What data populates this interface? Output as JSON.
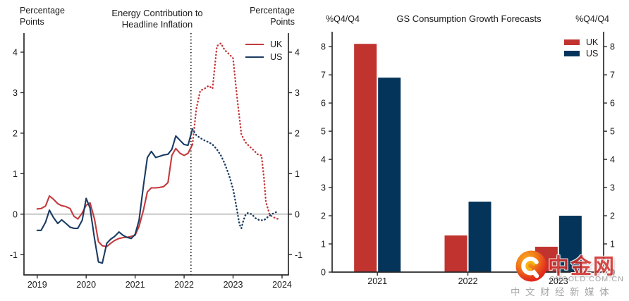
{
  "left_chart": {
    "title": [
      "Energy Contribution to",
      "Headline Inflation"
    ],
    "unit_left": [
      "Percentage",
      "Points"
    ],
    "unit_right": [
      "Percentage",
      "Points"
    ],
    "legend": [
      {
        "label": "UK",
        "color": "#c4393c"
      },
      {
        "label": "US",
        "color": "#1b3c63"
      }
    ]
  },
  "right_chart": {
    "title": "GS Consumption Growth Forecasts",
    "unit_left": "%Q4/Q4",
    "unit_right": "%Q4/Q4",
    "legend": [
      {
        "label": "UK",
        "color": "#c0332f"
      },
      {
        "label": "US",
        "color": "#043459"
      }
    ]
  },
  "watermark": {
    "brand": "中金网",
    "domain": "CNGOLD.COM.CN",
    "tagline": "中文财经新媒体",
    "logo_icon": "cngold-swirl-icon",
    "brand_color": "#cf2f2c"
  },
  "chart_data": [
    {
      "type": "line",
      "title": "Energy Contribution to Headline Inflation",
      "ylabel": "Percentage Points",
      "xlim": [
        2018.73,
        2024.13
      ],
      "ylim": [
        -1.5,
        4.47
      ],
      "yticks": [
        -1,
        0,
        1,
        2,
        3,
        4
      ],
      "xticks": [
        2019,
        2020,
        2021,
        2022,
        2023,
        2024
      ],
      "zero_line": true,
      "forecast_divider_x": 2022.14,
      "legend_position": "top-right-inside",
      "series": [
        {
          "name": "UK",
          "color": "#c4393c",
          "style": "solid",
          "points": [
            [
              2019.0,
              0.13
            ],
            [
              2019.08,
              0.14
            ],
            [
              2019.17,
              0.2
            ],
            [
              2019.25,
              0.45
            ],
            [
              2019.33,
              0.37
            ],
            [
              2019.42,
              0.26
            ],
            [
              2019.5,
              0.21
            ],
            [
              2019.58,
              0.19
            ],
            [
              2019.67,
              0.14
            ],
            [
              2019.75,
              -0.05
            ],
            [
              2019.83,
              -0.12
            ],
            [
              2019.92,
              0.03
            ],
            [
              2020.0,
              0.22
            ],
            [
              2020.08,
              0.28
            ],
            [
              2020.17,
              -0.12
            ],
            [
              2020.25,
              -0.68
            ],
            [
              2020.33,
              -0.78
            ],
            [
              2020.42,
              -0.8
            ],
            [
              2020.5,
              -0.72
            ],
            [
              2020.58,
              -0.65
            ],
            [
              2020.67,
              -0.6
            ],
            [
              2020.75,
              -0.58
            ],
            [
              2020.83,
              -0.57
            ],
            [
              2020.92,
              -0.55
            ],
            [
              2021.0,
              -0.52
            ],
            [
              2021.08,
              -0.3
            ],
            [
              2021.17,
              0.1
            ],
            [
              2021.25,
              0.55
            ],
            [
              2021.33,
              0.65
            ],
            [
              2021.42,
              0.65
            ],
            [
              2021.5,
              0.66
            ],
            [
              2021.58,
              0.68
            ],
            [
              2021.67,
              0.78
            ],
            [
              2021.75,
              1.45
            ],
            [
              2021.83,
              1.62
            ],
            [
              2021.92,
              1.5
            ],
            [
              2022.0,
              1.45
            ],
            [
              2022.08,
              1.5
            ],
            [
              2022.17,
              1.72
            ]
          ]
        },
        {
          "name": "UK forecast",
          "color": "#c4393c",
          "style": "dotted",
          "points": [
            [
              2022.17,
              1.72
            ],
            [
              2022.25,
              2.6
            ],
            [
              2022.33,
              3.05
            ],
            [
              2022.42,
              3.1
            ],
            [
              2022.5,
              3.17
            ],
            [
              2022.58,
              3.1
            ],
            [
              2022.67,
              4.15
            ],
            [
              2022.75,
              4.22
            ],
            [
              2022.83,
              4.05
            ],
            [
              2022.92,
              3.95
            ],
            [
              2023.0,
              3.85
            ],
            [
              2023.08,
              2.9
            ],
            [
              2023.17,
              1.97
            ],
            [
              2023.25,
              1.78
            ],
            [
              2023.33,
              1.68
            ],
            [
              2023.42,
              1.58
            ],
            [
              2023.5,
              1.48
            ],
            [
              2023.58,
              1.45
            ],
            [
              2023.63,
              0.9
            ],
            [
              2023.67,
              0.3
            ],
            [
              2023.75,
              -0.02
            ],
            [
              2023.83,
              -0.08
            ],
            [
              2023.92,
              -0.12
            ]
          ]
        },
        {
          "name": "US",
          "color": "#1b3c63",
          "style": "solid",
          "points": [
            [
              2019.0,
              -0.4
            ],
            [
              2019.08,
              -0.4
            ],
            [
              2019.17,
              -0.2
            ],
            [
              2019.25,
              0.1
            ],
            [
              2019.33,
              -0.08
            ],
            [
              2019.42,
              -0.23
            ],
            [
              2019.5,
              -0.14
            ],
            [
              2019.58,
              -0.22
            ],
            [
              2019.67,
              -0.32
            ],
            [
              2019.75,
              -0.35
            ],
            [
              2019.83,
              -0.35
            ],
            [
              2019.92,
              -0.15
            ],
            [
              2020.0,
              0.39
            ],
            [
              2020.08,
              0.15
            ],
            [
              2020.17,
              -0.6
            ],
            [
              2020.25,
              -1.18
            ],
            [
              2020.33,
              -1.21
            ],
            [
              2020.42,
              -0.72
            ],
            [
              2020.5,
              -0.62
            ],
            [
              2020.58,
              -0.55
            ],
            [
              2020.67,
              -0.44
            ],
            [
              2020.75,
              -0.52
            ],
            [
              2020.83,
              -0.57
            ],
            [
              2020.92,
              -0.6
            ],
            [
              2021.0,
              -0.5
            ],
            [
              2021.08,
              -0.15
            ],
            [
              2021.17,
              0.7
            ],
            [
              2021.25,
              1.4
            ],
            [
              2021.33,
              1.55
            ],
            [
              2021.42,
              1.4
            ],
            [
              2021.5,
              1.43
            ],
            [
              2021.58,
              1.46
            ],
            [
              2021.67,
              1.48
            ],
            [
              2021.75,
              1.6
            ],
            [
              2021.83,
              1.93
            ],
            [
              2021.92,
              1.82
            ],
            [
              2022.0,
              1.72
            ],
            [
              2022.08,
              1.7
            ],
            [
              2022.17,
              2.1
            ]
          ]
        },
        {
          "name": "US forecast",
          "color": "#1b3c63",
          "style": "dotted",
          "points": [
            [
              2022.17,
              2.1
            ],
            [
              2022.25,
              1.95
            ],
            [
              2022.33,
              1.88
            ],
            [
              2022.42,
              1.82
            ],
            [
              2022.5,
              1.78
            ],
            [
              2022.58,
              1.72
            ],
            [
              2022.67,
              1.6
            ],
            [
              2022.75,
              1.45
            ],
            [
              2022.83,
              1.25
            ],
            [
              2022.92,
              0.95
            ],
            [
              2023.0,
              0.62
            ],
            [
              2023.04,
              0.37
            ],
            [
              2023.08,
              0.1
            ],
            [
              2023.13,
              -0.25
            ],
            [
              2023.17,
              -0.35
            ],
            [
              2023.21,
              -0.16
            ],
            [
              2023.25,
              -0.03
            ],
            [
              2023.3,
              0.03
            ],
            [
              2023.38,
              0.0
            ],
            [
              2023.46,
              -0.1
            ],
            [
              2023.54,
              -0.15
            ],
            [
              2023.63,
              -0.15
            ],
            [
              2023.71,
              -0.07
            ],
            [
              2023.79,
              0.0
            ],
            [
              2023.88,
              0.05
            ]
          ]
        }
      ]
    },
    {
      "type": "bar",
      "title": "GS Consumption Growth Forecasts",
      "ylabel": "%Q4/Q4",
      "categories": [
        "2021",
        "2022",
        "2023"
      ],
      "series": [
        {
          "name": "UK",
          "color": "#c0332f",
          "values": [
            8.1,
            1.3,
            0.9
          ]
        },
        {
          "name": "US",
          "color": "#043459",
          "values": [
            6.9,
            2.5,
            2.0
          ]
        }
      ],
      "ylim": [
        0,
        8.53
      ],
      "yticks": [
        0,
        1,
        2,
        3,
        4,
        5,
        6,
        7,
        8
      ],
      "legend_position": "top-right-inside"
    }
  ]
}
